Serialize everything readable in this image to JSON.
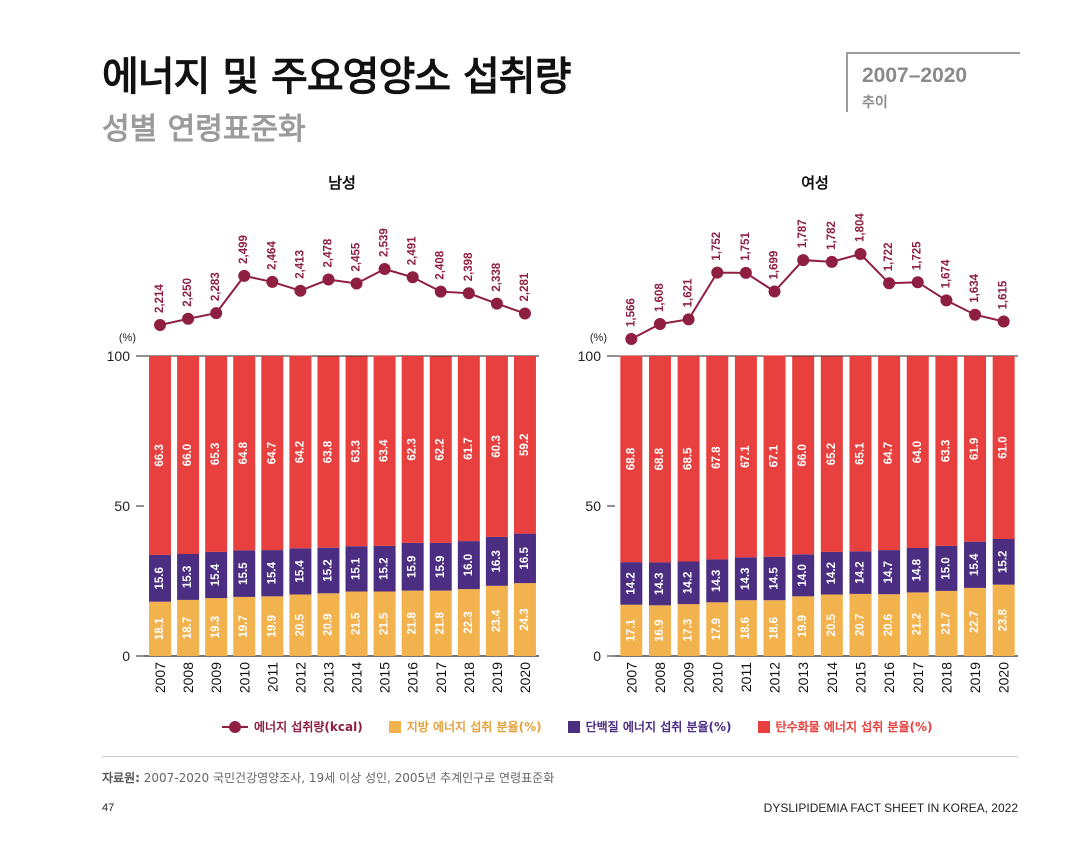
{
  "page": {
    "title": "에너지 및 주요영양소 섭취량",
    "subtitle": "성별 연령표준화",
    "period_years": "2007–2020",
    "period_label": "추이",
    "source_label": "자료원:",
    "source_text": "2007-2020 국민건강영양조사, 19세 이상 성인, 2005년 추계인구로 연령표준화",
    "page_number": "47",
    "footer_title": "DYSLIPIDEMIA FACT SHEET IN KOREA, 2022"
  },
  "legend": {
    "energy": "에너지 섭취량(kcal)",
    "fat": "지방 에너지 섭취 분율(%)",
    "protein": "단백질 에너지 섭취 분율(%)",
    "carb": "탄수화물 에너지 섭취 분율(%)"
  },
  "colors": {
    "fat": "#f2b24e",
    "protein": "#4b2e82",
    "carb": "#e8403e",
    "energy": "#8e1f40"
  },
  "chart_data": [
    {
      "type": "bar",
      "stacked": true,
      "title": "남성",
      "y_unit": "(%)",
      "ylim": [
        0,
        100
      ],
      "y_ticks": [
        "0",
        "50",
        "100"
      ],
      "categories": [
        "2007",
        "2008",
        "2009",
        "2010",
        "2011",
        "2012",
        "2013",
        "2014",
        "2015",
        "2016",
        "2017",
        "2018",
        "2019",
        "2020"
      ],
      "series": [
        {
          "name": "지방 에너지 섭취 분율(%)",
          "values": [
            18.1,
            18.7,
            19.3,
            19.7,
            19.9,
            20.5,
            20.9,
            21.5,
            21.5,
            21.8,
            21.8,
            22.3,
            23.4,
            24.3
          ]
        },
        {
          "name": "단백질 에너지 섭취 분율(%)",
          "values": [
            15.6,
            15.3,
            15.4,
            15.5,
            15.4,
            15.4,
            15.2,
            15.1,
            15.2,
            15.9,
            15.9,
            16.0,
            16.3,
            16.5
          ]
        },
        {
          "name": "탄수화물 에너지 섭취 분율(%)",
          "values": [
            66.3,
            66.0,
            65.3,
            64.8,
            64.7,
            64.2,
            63.8,
            63.3,
            63.4,
            62.3,
            62.2,
            61.7,
            60.3,
            59.2
          ]
        }
      ],
      "energy": {
        "name": "에너지 섭취량(kcal)",
        "values": [
          2214,
          2250,
          2283,
          2499,
          2464,
          2413,
          2478,
          2455,
          2539,
          2491,
          2408,
          2398,
          2338,
          2281
        ],
        "labels": [
          "2,214",
          "2,250",
          "2,283",
          "2,499",
          "2,464",
          "2,413",
          "2,478",
          "2,455",
          "2,539",
          "2,491",
          "2,408",
          "2,398",
          "2,338",
          "2,281"
        ]
      }
    },
    {
      "type": "bar",
      "stacked": true,
      "title": "여성",
      "y_unit": "(%)",
      "ylim": [
        0,
        100
      ],
      "y_ticks": [
        "0",
        "50",
        "100"
      ],
      "categories": [
        "2007",
        "2008",
        "2009",
        "2010",
        "2011",
        "2012",
        "2013",
        "2014",
        "2015",
        "2016",
        "2017",
        "2018",
        "2019",
        "2020"
      ],
      "series": [
        {
          "name": "지방 에너지 섭취 분율(%)",
          "values": [
            17.1,
            16.9,
            17.3,
            17.9,
            18.6,
            18.6,
            19.9,
            20.5,
            20.7,
            20.6,
            21.2,
            21.7,
            22.7,
            23.8
          ]
        },
        {
          "name": "단백질 에너지 섭취 분율(%)",
          "values": [
            14.2,
            14.3,
            14.2,
            14.3,
            14.3,
            14.5,
            14.0,
            14.2,
            14.2,
            14.7,
            14.8,
            15.0,
            15.4,
            15.2
          ]
        },
        {
          "name": "탄수화물 에너지 섭취 분율(%)",
          "values": [
            68.8,
            68.8,
            68.5,
            67.8,
            67.1,
            67.1,
            66.0,
            65.2,
            65.1,
            64.7,
            64.0,
            63.3,
            61.9,
            61.0
          ]
        }
      ],
      "energy": {
        "name": "에너지 섭취량(kcal)",
        "values": [
          1566,
          1608,
          1621,
          1752,
          1751,
          1699,
          1787,
          1782,
          1804,
          1722,
          1725,
          1674,
          1634,
          1615
        ],
        "labels": [
          "1,566",
          "1,608",
          "1,621",
          "1,752",
          "1,751",
          "1,699",
          "1,787",
          "1,782",
          "1,804",
          "1,722",
          "1,725",
          "1,674",
          "1,634",
          "1,615"
        ]
      }
    }
  ]
}
